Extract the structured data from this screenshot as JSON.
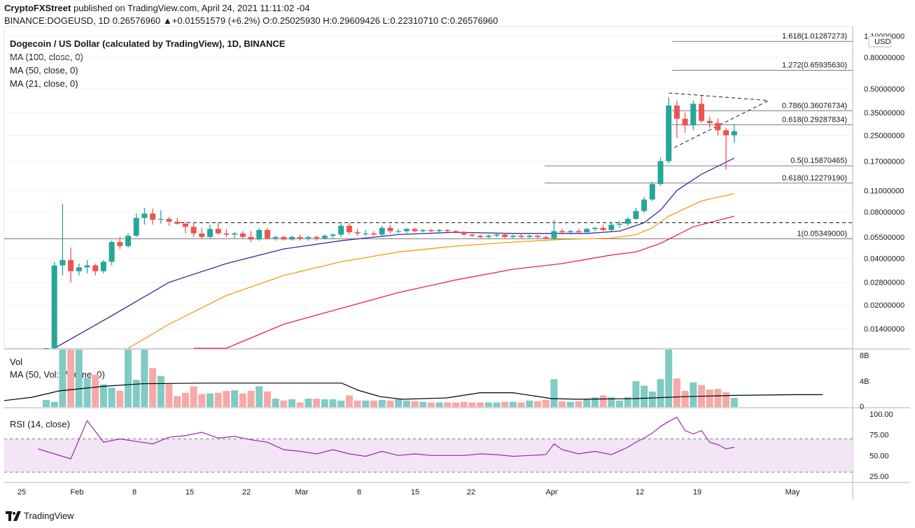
{
  "header": {
    "publisher": "CryptoFXStreet",
    "published_text": "published on TradingView.com, April 24, 2021 11:11:02 -04",
    "symbol": "BINANCE:DOGEUSD, 1D",
    "change": "0.26576960 ▲+0.01551579 (+6.2%)",
    "o_label": "O:",
    "o_value": "0.25025930",
    "h_label": "H:",
    "h_value": "0.29609426",
    "l_label": "L:",
    "l_value": "0.22310710",
    "c_label": "C:",
    "c_value": "0.26576960"
  },
  "legend": {
    "title": "Dogecoin / US Dollar (calculated by TradingView), 1D, BINANCE",
    "ma100": "MA (100, close, 0)",
    "ma50": "MA (50, close, 0)",
    "ma21": "MA (21, close, 0)"
  },
  "volume_panel": {
    "label": "Vol",
    "ma_label": "MA (50, Vol: Volume, 0)",
    "ticks": [
      "8B",
      "4B",
      "0"
    ]
  },
  "rsi_panel": {
    "label": "RSI (14, close)",
    "ticks": [
      "100.00",
      "75.00",
      "50.00",
      "25.00"
    ]
  },
  "footer": {
    "brand": "TradingView"
  },
  "colors": {
    "up": "#26a69a",
    "down": "#ef5350",
    "ma21": "#3f2aa0",
    "ma50": "#f39c12",
    "ma100": "#e91e63",
    "rsi": "#9c27b0",
    "rsi_band": "#f3e5f5",
    "volume_ma": "#000000"
  },
  "chart_data": {
    "type": "candlestick",
    "price_axis": {
      "scale": "log",
      "currency": "USD",
      "ticks": [
        "1.10000000",
        "0.80000000",
        "0.50000000",
        "0.35000000",
        "0.25000000",
        "0.17000000",
        "0.11000000",
        "0.08000000",
        "0.05500000",
        "0.04000000",
        "0.02800000",
        "0.02000000",
        "0.01400000"
      ],
      "tick_values": [
        1.1,
        0.8,
        0.5,
        0.35,
        0.25,
        0.17,
        0.11,
        0.08,
        0.055,
        0.04,
        0.028,
        0.02,
        0.014
      ]
    },
    "x_axis": {
      "labels": [
        "25",
        "Feb",
        "8",
        "15",
        "22",
        "Mar",
        "8",
        "15",
        "22",
        "Apr",
        "12",
        "19",
        "May"
      ]
    },
    "fib_levels": [
      {
        "label": "1.618(1.01287273)",
        "value": 1.01287273
      },
      {
        "label": "1.272(0.65935630)",
        "value": 0.6593563
      },
      {
        "label": "0.786(0.36076734)",
        "value": 0.36076734
      },
      {
        "label": "0.618(0.29287834)",
        "value": 0.29287834
      },
      {
        "label": "0.5(0.15870465)",
        "value": 0.15870465
      },
      {
        "label": "0.618(0.12279190)",
        "value": 0.1227919
      },
      {
        "label": "1(0.05349000)",
        "value": 0.05349
      }
    ],
    "resistance_level": 0.068,
    "triangle": {
      "apex_value": 0.42,
      "top_start": 0.47,
      "bottom_start": 0.2
    },
    "candles": [
      {
        "o": 0.0085,
        "h": 0.0095,
        "l": 0.0078,
        "c": 0.0088
      },
      {
        "o": 0.0089,
        "h": 0.038,
        "l": 0.0085,
        "c": 0.036
      },
      {
        "o": 0.036,
        "h": 0.09,
        "l": 0.031,
        "c": 0.039
      },
      {
        "o": 0.039,
        "h": 0.047,
        "l": 0.028,
        "c": 0.033
      },
      {
        "o": 0.033,
        "h": 0.037,
        "l": 0.031,
        "c": 0.035
      },
      {
        "o": 0.035,
        "h": 0.039,
        "l": 0.032,
        "c": 0.036
      },
      {
        "o": 0.036,
        "h": 0.037,
        "l": 0.031,
        "c": 0.033
      },
      {
        "o": 0.033,
        "h": 0.039,
        "l": 0.032,
        "c": 0.038
      },
      {
        "o": 0.038,
        "h": 0.052,
        "l": 0.036,
        "c": 0.051
      },
      {
        "o": 0.051,
        "h": 0.055,
        "l": 0.046,
        "c": 0.048
      },
      {
        "o": 0.048,
        "h": 0.058,
        "l": 0.047,
        "c": 0.056
      },
      {
        "o": 0.056,
        "h": 0.078,
        "l": 0.055,
        "c": 0.073
      },
      {
        "o": 0.073,
        "h": 0.085,
        "l": 0.066,
        "c": 0.078
      },
      {
        "o": 0.078,
        "h": 0.084,
        "l": 0.066,
        "c": 0.071
      },
      {
        "o": 0.071,
        "h": 0.082,
        "l": 0.067,
        "c": 0.072
      },
      {
        "o": 0.072,
        "h": 0.074,
        "l": 0.065,
        "c": 0.069
      },
      {
        "o": 0.069,
        "h": 0.073,
        "l": 0.066,
        "c": 0.067
      },
      {
        "o": 0.067,
        "h": 0.069,
        "l": 0.058,
        "c": 0.064
      },
      {
        "o": 0.064,
        "h": 0.068,
        "l": 0.055,
        "c": 0.058
      },
      {
        "o": 0.058,
        "h": 0.063,
        "l": 0.054,
        "c": 0.055
      },
      {
        "o": 0.055,
        "h": 0.066,
        "l": 0.054,
        "c": 0.062
      },
      {
        "o": 0.062,
        "h": 0.068,
        "l": 0.057,
        "c": 0.058
      },
      {
        "o": 0.058,
        "h": 0.062,
        "l": 0.055,
        "c": 0.057
      },
      {
        "o": 0.057,
        "h": 0.059,
        "l": 0.054,
        "c": 0.058
      },
      {
        "o": 0.058,
        "h": 0.06,
        "l": 0.054,
        "c": 0.055
      },
      {
        "o": 0.055,
        "h": 0.06,
        "l": 0.051,
        "c": 0.053
      },
      {
        "o": 0.053,
        "h": 0.063,
        "l": 0.052,
        "c": 0.061
      },
      {
        "o": 0.061,
        "h": 0.063,
        "l": 0.053,
        "c": 0.054
      },
      {
        "o": 0.054,
        "h": 0.056,
        "l": 0.052,
        "c": 0.055
      },
      {
        "o": 0.055,
        "h": 0.056,
        "l": 0.052,
        "c": 0.053
      },
      {
        "o": 0.053,
        "h": 0.056,
        "l": 0.052,
        "c": 0.055
      },
      {
        "o": 0.055,
        "h": 0.057,
        "l": 0.052,
        "c": 0.054
      },
      {
        "o": 0.054,
        "h": 0.056,
        "l": 0.052,
        "c": 0.055
      },
      {
        "o": 0.055,
        "h": 0.056,
        "l": 0.052,
        "c": 0.054
      },
      {
        "o": 0.054,
        "h": 0.057,
        "l": 0.053,
        "c": 0.056
      },
      {
        "o": 0.056,
        "h": 0.058,
        "l": 0.054,
        "c": 0.057
      },
      {
        "o": 0.057,
        "h": 0.068,
        "l": 0.055,
        "c": 0.065
      },
      {
        "o": 0.065,
        "h": 0.068,
        "l": 0.057,
        "c": 0.059
      },
      {
        "o": 0.059,
        "h": 0.062,
        "l": 0.056,
        "c": 0.058
      },
      {
        "o": 0.058,
        "h": 0.061,
        "l": 0.056,
        "c": 0.058
      },
      {
        "o": 0.058,
        "h": 0.06,
        "l": 0.056,
        "c": 0.057
      },
      {
        "o": 0.057,
        "h": 0.065,
        "l": 0.056,
        "c": 0.063
      },
      {
        "o": 0.063,
        "h": 0.066,
        "l": 0.058,
        "c": 0.06
      },
      {
        "o": 0.06,
        "h": 0.062,
        "l": 0.058,
        "c": 0.06
      },
      {
        "o": 0.06,
        "h": 0.063,
        "l": 0.058,
        "c": 0.062
      },
      {
        "o": 0.062,
        "h": 0.063,
        "l": 0.059,
        "c": 0.06
      },
      {
        "o": 0.06,
        "h": 0.062,
        "l": 0.059,
        "c": 0.061
      },
      {
        "o": 0.061,
        "h": 0.062,
        "l": 0.059,
        "c": 0.06
      },
      {
        "o": 0.06,
        "h": 0.062,
        "l": 0.059,
        "c": 0.061
      },
      {
        "o": 0.061,
        "h": 0.062,
        "l": 0.059,
        "c": 0.06
      },
      {
        "o": 0.06,
        "h": 0.061,
        "l": 0.058,
        "c": 0.059
      },
      {
        "o": 0.059,
        "h": 0.06,
        "l": 0.056,
        "c": 0.057
      },
      {
        "o": 0.057,
        "h": 0.058,
        "l": 0.055,
        "c": 0.056
      },
      {
        "o": 0.056,
        "h": 0.057,
        "l": 0.054,
        "c": 0.055
      },
      {
        "o": 0.055,
        "h": 0.057,
        "l": 0.054,
        "c": 0.056
      },
      {
        "o": 0.056,
        "h": 0.058,
        "l": 0.055,
        "c": 0.057
      },
      {
        "o": 0.057,
        "h": 0.058,
        "l": 0.054,
        "c": 0.055
      },
      {
        "o": 0.055,
        "h": 0.057,
        "l": 0.054,
        "c": 0.056
      },
      {
        "o": 0.056,
        "h": 0.058,
        "l": 0.054,
        "c": 0.055
      },
      {
        "o": 0.055,
        "h": 0.057,
        "l": 0.054,
        "c": 0.056
      },
      {
        "o": 0.056,
        "h": 0.057,
        "l": 0.054,
        "c": 0.055
      },
      {
        "o": 0.055,
        "h": 0.056,
        "l": 0.053,
        "c": 0.054
      },
      {
        "o": 0.054,
        "h": 0.071,
        "l": 0.053,
        "c": 0.06
      },
      {
        "o": 0.06,
        "h": 0.062,
        "l": 0.057,
        "c": 0.059
      },
      {
        "o": 0.059,
        "h": 0.061,
        "l": 0.057,
        "c": 0.06
      },
      {
        "o": 0.06,
        "h": 0.062,
        "l": 0.058,
        "c": 0.059
      },
      {
        "o": 0.059,
        "h": 0.063,
        "l": 0.058,
        "c": 0.062
      },
      {
        "o": 0.062,
        "h": 0.064,
        "l": 0.06,
        "c": 0.063
      },
      {
        "o": 0.063,
        "h": 0.066,
        "l": 0.06,
        "c": 0.061
      },
      {
        "o": 0.061,
        "h": 0.068,
        "l": 0.06,
        "c": 0.066
      },
      {
        "o": 0.066,
        "h": 0.07,
        "l": 0.063,
        "c": 0.067
      },
      {
        "o": 0.067,
        "h": 0.074,
        "l": 0.065,
        "c": 0.072
      },
      {
        "o": 0.072,
        "h": 0.085,
        "l": 0.071,
        "c": 0.081
      },
      {
        "o": 0.081,
        "h": 0.1,
        "l": 0.079,
        "c": 0.096
      },
      {
        "o": 0.096,
        "h": 0.125,
        "l": 0.094,
        "c": 0.121
      },
      {
        "o": 0.121,
        "h": 0.18,
        "l": 0.118,
        "c": 0.17
      },
      {
        "o": 0.17,
        "h": 0.44,
        "l": 0.165,
        "c": 0.39
      },
      {
        "o": 0.39,
        "h": 0.42,
        "l": 0.24,
        "c": 0.32
      },
      {
        "o": 0.32,
        "h": 0.35,
        "l": 0.26,
        "c": 0.29
      },
      {
        "o": 0.29,
        "h": 0.42,
        "l": 0.27,
        "c": 0.4
      },
      {
        "o": 0.4,
        "h": 0.45,
        "l": 0.3,
        "c": 0.31
      },
      {
        "o": 0.31,
        "h": 0.33,
        "l": 0.28,
        "c": 0.3
      },
      {
        "o": 0.3,
        "h": 0.32,
        "l": 0.25,
        "c": 0.27
      },
      {
        "o": 0.27,
        "h": 0.28,
        "l": 0.15,
        "c": 0.25
      },
      {
        "o": 0.25,
        "h": 0.296,
        "l": 0.223,
        "c": 0.266
      }
    ],
    "ma21": [
      [
        1,
        0.006
      ],
      [
        8,
        0.017
      ],
      [
        15,
        0.028
      ],
      [
        22,
        0.037
      ],
      [
        29,
        0.046
      ],
      [
        36,
        0.052
      ],
      [
        43,
        0.057
      ],
      [
        50,
        0.059
      ],
      [
        57,
        0.058
      ],
      [
        62,
        0.058
      ],
      [
        66,
        0.058
      ],
      [
        70,
        0.06
      ],
      [
        73,
        0.068
      ],
      [
        75,
        0.082
      ],
      [
        77,
        0.11
      ],
      [
        80,
        0.14
      ],
      [
        84,
        0.178
      ]
    ],
    "ma50": [
      [
        10,
        0.006
      ],
      [
        15,
        0.015
      ],
      [
        22,
        0.023
      ],
      [
        29,
        0.031
      ],
      [
        36,
        0.038
      ],
      [
        43,
        0.044
      ],
      [
        50,
        0.048
      ],
      [
        57,
        0.051
      ],
      [
        63,
        0.053
      ],
      [
        69,
        0.054
      ],
      [
        72,
        0.057
      ],
      [
        74,
        0.063
      ],
      [
        76,
        0.075
      ],
      [
        80,
        0.094
      ],
      [
        84,
        0.105
      ]
    ],
    "ma100": [
      [
        18,
        0.006
      ],
      [
        22,
        0.01
      ],
      [
        29,
        0.015
      ],
      [
        36,
        0.019
      ],
      [
        43,
        0.024
      ],
      [
        50,
        0.029
      ],
      [
        57,
        0.034
      ],
      [
        63,
        0.037
      ],
      [
        69,
        0.042
      ],
      [
        72,
        0.044
      ],
      [
        75,
        0.05
      ],
      [
        79,
        0.064
      ],
      [
        84,
        0.075
      ]
    ],
    "volume_bn": [
      1.1,
      0.8,
      9,
      11,
      9.5,
      4.5,
      5,
      3.5,
      3,
      2.5,
      9,
      4.2,
      9.5,
      6,
      4.8,
      3.6,
      1.7,
      2.2,
      3.2,
      2,
      2.1,
      2.2,
      2.5,
      2.6,
      2.1,
      2.5,
      3.2,
      2.4,
      1.3,
      1,
      1.2,
      0.7,
      1.3,
      1.3,
      1.2,
      1.2,
      1,
      1.8,
      1,
      1,
      1,
      1.1,
      1,
      1.2,
      1,
      0.9,
      0.8,
      0.7,
      0.7,
      0.7,
      0.7,
      0.8,
      0.7,
      0.7,
      0.7,
      0.7,
      0.8,
      0.8,
      0.7,
      1,
      0.9,
      1.1,
      4.3,
      0.9,
      0.8,
      0.9,
      1.2,
      1.5,
      1.8,
      1.5,
      1,
      1.5,
      4,
      3.3,
      2.4,
      4.3,
      9.3,
      4.4,
      2.5,
      3.8,
      3.4,
      2.7,
      2.8,
      2.3,
      1.4
    ],
    "volume_ma_bn": [
      [
        0,
        1
      ],
      [
        5,
        1.5
      ],
      [
        10,
        2.5
      ],
      [
        18,
        3.2
      ],
      [
        25,
        3.6
      ],
      [
        36,
        3.7
      ],
      [
        45,
        3.7
      ],
      [
        61,
        3.7
      ],
      [
        64,
        2.6
      ],
      [
        68,
        1.6
      ],
      [
        72,
        1.2
      ],
      [
        80,
        1.4
      ],
      [
        86,
        2.2
      ],
      [
        92,
        2.2
      ],
      [
        99,
        1.3
      ],
      [
        104,
        1.2
      ],
      [
        114,
        1.3
      ],
      [
        123,
        1.6
      ],
      [
        132,
        1.8
      ],
      [
        143,
        1.9
      ],
      [
        148,
        1.9
      ]
    ],
    "rsi": [
      [
        -1,
        58
      ],
      [
        1,
        52
      ],
      [
        3,
        46
      ],
      [
        5,
        92
      ],
      [
        7,
        66
      ],
      [
        9,
        70
      ],
      [
        11,
        67
      ],
      [
        13,
        64
      ],
      [
        15,
        72
      ],
      [
        17,
        74
      ],
      [
        19,
        78
      ],
      [
        21,
        71
      ],
      [
        23,
        73
      ],
      [
        25,
        69
      ],
      [
        27,
        66
      ],
      [
        29,
        57
      ],
      [
        31,
        55
      ],
      [
        33,
        52
      ],
      [
        35,
        57
      ],
      [
        37,
        52
      ],
      [
        39,
        49
      ],
      [
        41,
        55
      ],
      [
        43,
        50
      ],
      [
        45,
        52
      ],
      [
        47,
        50
      ],
      [
        49,
        50
      ],
      [
        51,
        50
      ],
      [
        53,
        52
      ],
      [
        55,
        51
      ],
      [
        57,
        49
      ],
      [
        59,
        50
      ],
      [
        61,
        51
      ],
      [
        62,
        64
      ],
      [
        63,
        57
      ],
      [
        65,
        52
      ],
      [
        67,
        55
      ],
      [
        69,
        51
      ],
      [
        71,
        60
      ],
      [
        72,
        66
      ],
      [
        73,
        71
      ],
      [
        74,
        77
      ],
      [
        75,
        85
      ],
      [
        76,
        91
      ],
      [
        77,
        96
      ],
      [
        78,
        80
      ],
      [
        79,
        76
      ],
      [
        80,
        80
      ],
      [
        81,
        66
      ],
      [
        82,
        63
      ],
      [
        83,
        58
      ],
      [
        84,
        60
      ]
    ],
    "rsi_band": [
      30,
      70
    ]
  }
}
